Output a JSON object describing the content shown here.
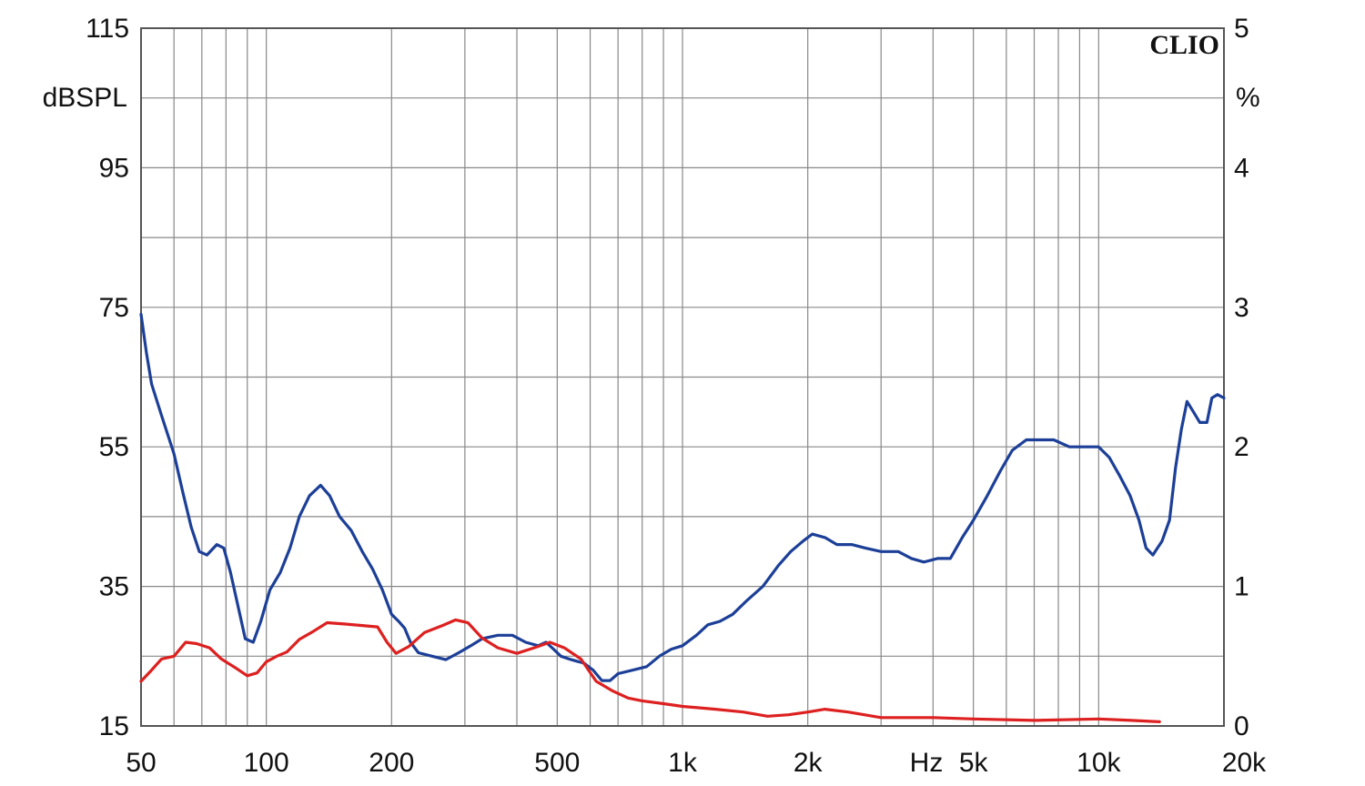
{
  "chart_data": {
    "type": "line",
    "brand": "CLIO",
    "x_unit": "Hz",
    "y_left_unit": "dBSPL",
    "y_right_unit": "%",
    "x_scale": "log",
    "xlim": [
      50,
      20000
    ],
    "ylim_left": [
      15,
      115
    ],
    "ylim_right": [
      0,
      5
    ],
    "grid": true,
    "x_ticks": [
      {
        "value": 50,
        "label": "50"
      },
      {
        "value": 100,
        "label": "100"
      },
      {
        "value": 200,
        "label": "200"
      },
      {
        "value": 500,
        "label": "500"
      },
      {
        "value": 1000,
        "label": "1k"
      },
      {
        "value": 2000,
        "label": "2k"
      },
      {
        "value": 5000,
        "label": "5k"
      },
      {
        "value": 10000,
        "label": "10k"
      },
      {
        "value": 20000,
        "label": "20k"
      }
    ],
    "y_left_ticks": [
      "115",
      "95",
      "75",
      "55",
      "35",
      "15"
    ],
    "y_right_ticks": [
      "5",
      "4",
      "3",
      "2",
      "1",
      "0"
    ],
    "colors": {
      "grid": "#888888",
      "frame": "#555555",
      "blue": "#1c3f97",
      "red": "#dd2020"
    },
    "series": [
      {
        "color": "blue",
        "axis": "left",
        "points": [
          [
            50,
            74
          ],
          [
            51.5,
            68.5
          ],
          [
            53,
            64
          ],
          [
            56,
            59.5
          ],
          [
            60,
            54
          ],
          [
            63,
            48.5
          ],
          [
            66,
            43.5
          ],
          [
            69,
            40
          ],
          [
            72,
            39.5
          ],
          [
            76,
            41
          ],
          [
            79,
            40.5
          ],
          [
            82,
            37
          ],
          [
            86,
            31.5
          ],
          [
            89,
            27.5
          ],
          [
            93,
            27
          ],
          [
            97,
            30
          ],
          [
            102,
            34.5
          ],
          [
            108,
            37
          ],
          [
            114,
            40.5
          ],
          [
            120,
            45
          ],
          [
            127,
            48
          ],
          [
            135,
            49.5
          ],
          [
            142,
            48
          ],
          [
            150,
            45
          ],
          [
            160,
            43
          ],
          [
            170,
            40
          ],
          [
            180,
            37.5
          ],
          [
            190,
            34.5
          ],
          [
            200,
            31
          ],
          [
            208,
            30
          ],
          [
            215,
            29
          ],
          [
            222,
            27
          ],
          [
            232,
            25.5
          ],
          [
            250,
            25
          ],
          [
            270,
            24.5
          ],
          [
            290,
            25.5
          ],
          [
            310,
            26.5
          ],
          [
            330,
            27.5
          ],
          [
            360,
            28
          ],
          [
            390,
            28
          ],
          [
            420,
            27
          ],
          [
            450,
            26.5
          ],
          [
            470,
            27
          ],
          [
            490,
            26
          ],
          [
            510,
            25
          ],
          [
            540,
            24.5
          ],
          [
            580,
            24
          ],
          [
            610,
            23
          ],
          [
            640,
            21.5
          ],
          [
            670,
            21.5
          ],
          [
            700,
            22.5
          ],
          [
            760,
            23
          ],
          [
            820,
            23.5
          ],
          [
            880,
            25
          ],
          [
            940,
            26
          ],
          [
            1000,
            26.5
          ],
          [
            1080,
            28
          ],
          [
            1150,
            29.5
          ],
          [
            1230,
            30
          ],
          [
            1320,
            31
          ],
          [
            1430,
            33
          ],
          [
            1560,
            35
          ],
          [
            1700,
            38
          ],
          [
            1820,
            40
          ],
          [
            1950,
            41.5
          ],
          [
            2050,
            42.5
          ],
          [
            2200,
            42
          ],
          [
            2350,
            41
          ],
          [
            2550,
            41
          ],
          [
            2750,
            40.5
          ],
          [
            3000,
            40
          ],
          [
            3300,
            40
          ],
          [
            3550,
            39
          ],
          [
            3800,
            38.5
          ],
          [
            4100,
            39
          ],
          [
            4400,
            39
          ],
          [
            4700,
            42
          ],
          [
            5000,
            44.5
          ],
          [
            5400,
            48
          ],
          [
            5800,
            51.5
          ],
          [
            6200,
            54.5
          ],
          [
            6700,
            56
          ],
          [
            7200,
            56
          ],
          [
            7800,
            56
          ],
          [
            8500,
            55
          ],
          [
            9300,
            55
          ],
          [
            10000,
            55
          ],
          [
            10600,
            53.5
          ],
          [
            11200,
            51
          ],
          [
            11900,
            48
          ],
          [
            12500,
            44.5
          ],
          [
            13000,
            40.5
          ],
          [
            13500,
            39.5
          ],
          [
            14200,
            41.5
          ],
          [
            14800,
            44.5
          ],
          [
            15300,
            52
          ],
          [
            15800,
            57.5
          ],
          [
            16300,
            61.5
          ],
          [
            16900,
            60
          ],
          [
            17500,
            58.5
          ],
          [
            18200,
            58.5
          ],
          [
            18700,
            62
          ],
          [
            19300,
            62.5
          ],
          [
            20000,
            62
          ]
        ]
      },
      {
        "color": "red",
        "axis": "right",
        "points": [
          [
            50,
            0.32
          ],
          [
            53,
            0.4
          ],
          [
            56,
            0.48
          ],
          [
            60,
            0.5
          ],
          [
            64,
            0.6
          ],
          [
            68,
            0.59
          ],
          [
            73,
            0.56
          ],
          [
            78,
            0.48
          ],
          [
            84,
            0.42
          ],
          [
            90,
            0.36
          ],
          [
            95,
            0.38
          ],
          [
            100,
            0.46
          ],
          [
            106,
            0.5
          ],
          [
            112,
            0.53
          ],
          [
            120,
            0.62
          ],
          [
            130,
            0.68
          ],
          [
            140,
            0.74
          ],
          [
            155,
            0.73
          ],
          [
            170,
            0.72
          ],
          [
            185,
            0.71
          ],
          [
            195,
            0.6
          ],
          [
            205,
            0.52
          ],
          [
            220,
            0.57
          ],
          [
            240,
            0.67
          ],
          [
            265,
            0.72
          ],
          [
            285,
            0.76
          ],
          [
            305,
            0.74
          ],
          [
            330,
            0.63
          ],
          [
            360,
            0.56
          ],
          [
            400,
            0.52
          ],
          [
            440,
            0.56
          ],
          [
            480,
            0.6
          ],
          [
            520,
            0.56
          ],
          [
            570,
            0.48
          ],
          [
            620,
            0.32
          ],
          [
            680,
            0.25
          ],
          [
            740,
            0.2
          ],
          [
            800,
            0.18
          ],
          [
            900,
            0.16
          ],
          [
            1000,
            0.14
          ],
          [
            1200,
            0.12
          ],
          [
            1400,
            0.1
          ],
          [
            1600,
            0.07
          ],
          [
            1800,
            0.08
          ],
          [
            2000,
            0.1
          ],
          [
            2200,
            0.12
          ],
          [
            2500,
            0.1
          ],
          [
            3000,
            0.06
          ],
          [
            4000,
            0.06
          ],
          [
            5000,
            0.05
          ],
          [
            7000,
            0.04
          ],
          [
            10000,
            0.05
          ],
          [
            12000,
            0.04
          ],
          [
            14000,
            0.03
          ]
        ]
      }
    ]
  }
}
